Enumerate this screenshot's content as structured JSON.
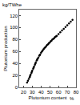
{
  "chart_data": {
    "type": "scatter",
    "xlabel": "Plutonium content",
    "ylabel": "Plutonium production",
    "annotations": [
      {
        "text": "kg/TWhe"
      },
      {
        "text": "%"
      }
    ],
    "color": "#000000",
    "marker": "circle",
    "grid": false,
    "x": [
      24,
      25,
      26,
      27,
      27.5,
      28,
      29,
      29.5,
      30,
      31,
      31.5,
      32,
      33,
      33.5,
      34,
      35,
      35.5,
      36,
      37,
      38,
      38.5,
      39,
      40,
      41,
      42,
      43,
      44,
      45,
      46,
      47,
      48,
      49,
      50,
      51,
      52,
      53,
      54,
      55,
      56,
      57,
      58,
      60,
      62,
      64,
      66,
      68,
      70,
      72,
      74,
      76
    ],
    "values": [
      8,
      11,
      14,
      17,
      19,
      21,
      24,
      26,
      28,
      31,
      33,
      35,
      38,
      40,
      42,
      45,
      46,
      48,
      50,
      53,
      54,
      55,
      58,
      60,
      62,
      64,
      66,
      67,
      69,
      71,
      72,
      74,
      75,
      77,
      78,
      80,
      81,
      82,
      84,
      85,
      86,
      89,
      92,
      95,
      98,
      101,
      104,
      107,
      110,
      113
    ],
    "xlim": [
      15,
      80
    ],
    "xticks": [
      20,
      30,
      40,
      50,
      60,
      70,
      80
    ],
    "ylim": [
      0,
      130
    ],
    "yticks": [
      0,
      20,
      40,
      60,
      80,
      100,
      120
    ]
  }
}
